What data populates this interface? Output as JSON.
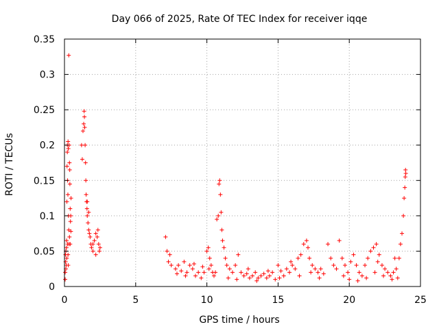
{
  "chart_data": {
    "type": "scatter",
    "title": "Day 066 of 2025, Rate Of TEC Index for receiver iqqe",
    "xlabel": "GPS time / hours",
    "ylabel": "ROTI / TECUs",
    "xlim": [
      0,
      25
    ],
    "ylim": [
      0,
      0.35
    ],
    "x_ticks": [
      "0",
      "5",
      "10",
      "15",
      "20",
      "25"
    ],
    "y_ticks": [
      "0",
      "0.05",
      "0.1",
      "0.15",
      "0.2",
      "0.25",
      "0.3",
      "0.35"
    ],
    "grid": true,
    "marker": "plus",
    "color": "#ff0000",
    "series": [
      {
        "points": [
          [
            0.05,
            0.02
          ],
          [
            0.08,
            0.035
          ],
          [
            0.1,
            0.05
          ],
          [
            0.12,
            0.03
          ],
          [
            0.15,
            0.065
          ],
          [
            0.17,
            0.12
          ],
          [
            0.18,
            0.17
          ],
          [
            0.2,
            0.2
          ],
          [
            0.2,
            0.19
          ],
          [
            0.22,
            0.15
          ],
          [
            0.24,
            0.13
          ],
          [
            0.25,
            0.205
          ],
          [
            0.27,
            0.195
          ],
          [
            0.28,
            0.1
          ],
          [
            0.3,
            0.08
          ],
          [
            0.3,
            0.327
          ],
          [
            0.32,
            0.06
          ],
          [
            0.33,
            0.2
          ],
          [
            0.35,
            0.175
          ],
          [
            0.37,
            0.165
          ],
          [
            0.38,
            0.145
          ],
          [
            0.4,
            0.11
          ],
          [
            0.42,
            0.092
          ],
          [
            0.45,
            0.078
          ],
          [
            0.05,
            0.01
          ],
          [
            0.07,
            0.045
          ],
          [
            0.1,
            0.025
          ],
          [
            0.14,
            0.055
          ],
          [
            0.16,
            0.04
          ],
          [
            0.22,
            0.06
          ],
          [
            0.25,
            0.045
          ],
          [
            0.26,
            0.03
          ],
          [
            0.35,
            0.07
          ],
          [
            0.4,
            0.06
          ],
          [
            0.44,
            0.1
          ],
          [
            0.46,
            0.125
          ],
          [
            1.2,
            0.2
          ],
          [
            1.25,
            0.18
          ],
          [
            1.3,
            0.22
          ],
          [
            1.35,
            0.23
          ],
          [
            1.38,
            0.248
          ],
          [
            1.4,
            0.24
          ],
          [
            1.42,
            0.225
          ],
          [
            1.45,
            0.2
          ],
          [
            1.48,
            0.175
          ],
          [
            1.5,
            0.15
          ],
          [
            1.52,
            0.13
          ],
          [
            1.55,
            0.12
          ],
          [
            1.58,
            0.11
          ],
          [
            1.6,
            0.1
          ],
          [
            1.65,
            0.09
          ],
          [
            1.7,
            0.08
          ],
          [
            1.75,
            0.075
          ],
          [
            1.8,
            0.07
          ],
          [
            1.85,
            0.06
          ],
          [
            1.9,
            0.055
          ],
          [
            2.0,
            0.05
          ],
          [
            2.1,
            0.065
          ],
          [
            2.2,
            0.075
          ],
          [
            2.3,
            0.07
          ],
          [
            2.4,
            0.06
          ],
          [
            2.45,
            0.05
          ],
          [
            1.6,
            0.12
          ],
          [
            1.7,
            0.105
          ],
          [
            2.0,
            0.06
          ],
          [
            2.2,
            0.045
          ],
          [
            2.35,
            0.08
          ],
          [
            2.5,
            0.055
          ],
          [
            7.1,
            0.07
          ],
          [
            7.2,
            0.05
          ],
          [
            7.3,
            0.035
          ],
          [
            7.5,
            0.03
          ],
          [
            7.8,
            0.025
          ],
          [
            8.0,
            0.03
          ],
          [
            8.2,
            0.022
          ],
          [
            8.4,
            0.035
          ],
          [
            8.6,
            0.02
          ],
          [
            8.8,
            0.03
          ],
          [
            9.0,
            0.025
          ],
          [
            9.2,
            0.015
          ],
          [
            9.4,
            0.02
          ],
          [
            9.6,
            0.012
          ],
          [
            9.8,
            0.02
          ],
          [
            10.0,
            0.05
          ],
          [
            10.1,
            0.055
          ],
          [
            10.2,
            0.04
          ],
          [
            10.3,
            0.03
          ],
          [
            10.4,
            0.02
          ],
          [
            10.5,
            0.015
          ],
          [
            10.6,
            0.02
          ],
          [
            10.7,
            0.095
          ],
          [
            10.8,
            0.1
          ],
          [
            10.85,
            0.145
          ],
          [
            10.9,
            0.15
          ],
          [
            10.95,
            0.13
          ],
          [
            11.0,
            0.105
          ],
          [
            11.05,
            0.08
          ],
          [
            11.1,
            0.065
          ],
          [
            11.2,
            0.055
          ],
          [
            11.3,
            0.04
          ],
          [
            11.4,
            0.03
          ],
          [
            11.6,
            0.025
          ],
          [
            11.8,
            0.02
          ],
          [
            12.0,
            0.03
          ],
          [
            12.2,
            0.045
          ],
          [
            12.4,
            0.02
          ],
          [
            12.6,
            0.015
          ],
          [
            12.8,
            0.018
          ],
          [
            13.0,
            0.012
          ],
          [
            13.2,
            0.015
          ],
          [
            13.4,
            0.02
          ],
          [
            13.6,
            0.012
          ],
          [
            13.8,
            0.015
          ],
          [
            14.0,
            0.018
          ],
          [
            14.2,
            0.012
          ],
          [
            14.4,
            0.015
          ],
          [
            14.6,
            0.02
          ],
          [
            14.8,
            0.01
          ],
          [
            15.0,
            0.03
          ],
          [
            15.2,
            0.022
          ],
          [
            15.4,
            0.015
          ],
          [
            15.6,
            0.025
          ],
          [
            15.8,
            0.02
          ],
          [
            16.0,
            0.03
          ],
          [
            16.2,
            0.025
          ],
          [
            16.4,
            0.04
          ],
          [
            16.6,
            0.045
          ],
          [
            16.8,
            0.06
          ],
          [
            17.0,
            0.065
          ],
          [
            17.1,
            0.055
          ],
          [
            17.2,
            0.04
          ],
          [
            17.4,
            0.03
          ],
          [
            17.6,
            0.025
          ],
          [
            17.8,
            0.02
          ],
          [
            18.0,
            0.025
          ],
          [
            18.2,
            0.018
          ],
          [
            7.4,
            0.045
          ],
          [
            7.9,
            0.018
          ],
          [
            8.5,
            0.015
          ],
          [
            9.1,
            0.032
          ],
          [
            9.7,
            0.028
          ],
          [
            10.15,
            0.025
          ],
          [
            11.5,
            0.012
          ],
          [
            12.1,
            0.01
          ],
          [
            12.9,
            0.025
          ],
          [
            13.5,
            0.008
          ],
          [
            14.3,
            0.022
          ],
          [
            15.1,
            0.012
          ],
          [
            15.9,
            0.035
          ],
          [
            16.5,
            0.015
          ],
          [
            17.3,
            0.02
          ],
          [
            17.9,
            0.012
          ],
          [
            18.5,
            0.06
          ],
          [
            18.7,
            0.04
          ],
          [
            18.9,
            0.03
          ],
          [
            19.1,
            0.025
          ],
          [
            19.3,
            0.065
          ],
          [
            19.5,
            0.04
          ],
          [
            19.7,
            0.03
          ],
          [
            19.9,
            0.02
          ],
          [
            20.1,
            0.035
          ],
          [
            20.3,
            0.045
          ],
          [
            20.5,
            0.03
          ],
          [
            20.7,
            0.02
          ],
          [
            20.9,
            0.015
          ],
          [
            21.1,
            0.03
          ],
          [
            21.3,
            0.04
          ],
          [
            21.5,
            0.05
          ],
          [
            21.7,
            0.055
          ],
          [
            21.9,
            0.06
          ],
          [
            22.1,
            0.045
          ],
          [
            22.3,
            0.03
          ],
          [
            22.5,
            0.025
          ],
          [
            22.7,
            0.02
          ],
          [
            22.9,
            0.015
          ],
          [
            23.1,
            0.02
          ],
          [
            23.3,
            0.025
          ],
          [
            23.5,
            0.04
          ],
          [
            23.6,
            0.06
          ],
          [
            23.7,
            0.075
          ],
          [
            23.8,
            0.1
          ],
          [
            23.85,
            0.125
          ],
          [
            23.9,
            0.14
          ],
          [
            23.93,
            0.155
          ],
          [
            23.95,
            0.165
          ],
          [
            23.97,
            0.16
          ],
          [
            20.0,
            0.01
          ],
          [
            20.6,
            0.008
          ],
          [
            21.2,
            0.012
          ],
          [
            21.8,
            0.02
          ],
          [
            22.4,
            0.015
          ],
          [
            23.0,
            0.01
          ],
          [
            23.4,
            0.012
          ],
          [
            19.6,
            0.015
          ],
          [
            22.0,
            0.035
          ],
          [
            23.2,
            0.04
          ]
        ]
      }
    ]
  }
}
